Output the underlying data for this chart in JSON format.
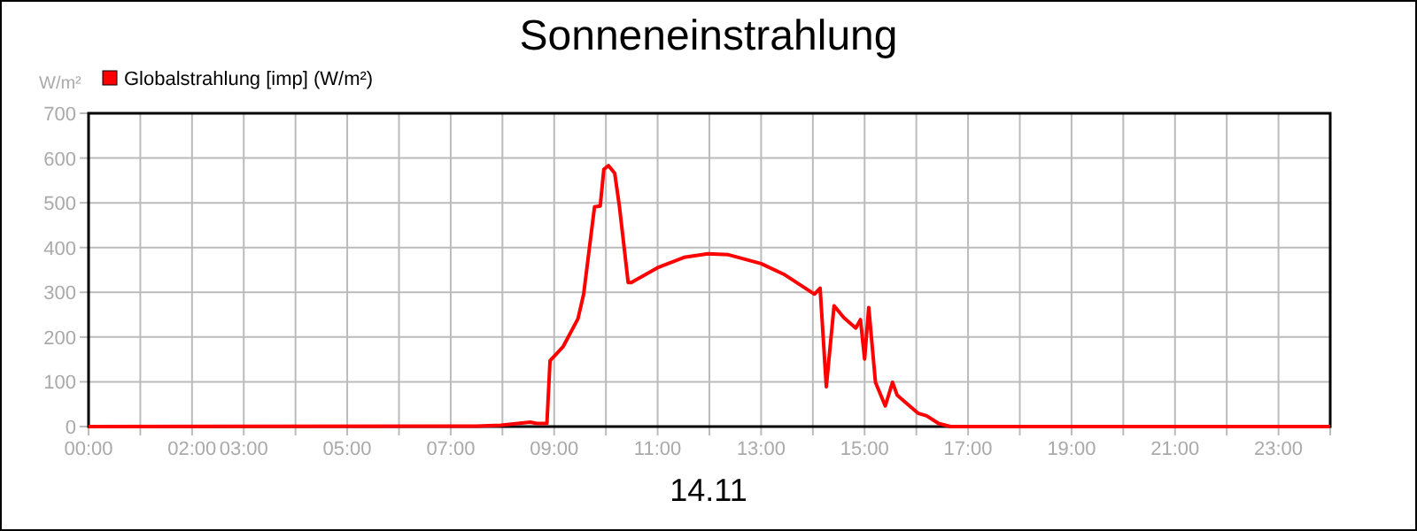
{
  "chart_data": {
    "type": "line",
    "title": "Sonneneinstrahlung",
    "xlabel": "14.11",
    "ylabel": "W/m²",
    "series": [
      {
        "name": "Globalstrahlung [imp] (W/m²)",
        "color": "#ff0000",
        "x": [
          0,
          7.5,
          7.97,
          8.54,
          8.66,
          8.86,
          8.92,
          9.17,
          9.46,
          9.57,
          9.78,
          9.89,
          9.96,
          10.05,
          10.17,
          10.26,
          10.43,
          10.49,
          11.0,
          11.51,
          11.97,
          12.37,
          13.0,
          13.46,
          14.03,
          14.14,
          14.26,
          14.41,
          14.6,
          14.83,
          14.92,
          15.0,
          15.08,
          15.21,
          15.4,
          15.54,
          15.63,
          16.03,
          16.2,
          16.43,
          16.66,
          24
        ],
        "values": [
          0,
          1,
          3,
          10,
          7,
          7,
          147,
          178,
          241,
          296,
          491,
          493,
          575,
          583,
          566,
          493,
          322,
          322,
          355,
          378,
          386,
          384,
          364,
          339,
          296,
          309,
          89,
          270,
          243,
          220,
          239,
          151,
          266,
          99,
          46,
          99,
          70,
          30,
          24,
          7,
          0,
          0
        ]
      }
    ],
    "xlim": [
      0,
      24
    ],
    "xticks": [
      {
        "value": 0,
        "label": "00:00"
      },
      {
        "value": 1,
        "label": null
      },
      {
        "value": 2,
        "label": "02:00"
      },
      {
        "value": 3,
        "label": "03:00"
      },
      {
        "value": 4,
        "label": null
      },
      {
        "value": 5,
        "label": "05:00"
      },
      {
        "value": 6,
        "label": null
      },
      {
        "value": 7,
        "label": "07:00"
      },
      {
        "value": 8,
        "label": null
      },
      {
        "value": 9,
        "label": "09:00"
      },
      {
        "value": 10,
        "label": null
      },
      {
        "value": 11,
        "label": "11:00"
      },
      {
        "value": 12,
        "label": null
      },
      {
        "value": 13,
        "label": "13:00"
      },
      {
        "value": 14,
        "label": null
      },
      {
        "value": 15,
        "label": "15:00"
      },
      {
        "value": 16,
        "label": null
      },
      {
        "value": 17,
        "label": "17:00"
      },
      {
        "value": 18,
        "label": null
      },
      {
        "value": 19,
        "label": "19:00"
      },
      {
        "value": 20,
        "label": null
      },
      {
        "value": 21,
        "label": "21:00"
      },
      {
        "value": 22,
        "label": null
      },
      {
        "value": 23,
        "label": "23:00"
      },
      {
        "value": 24,
        "label": null
      }
    ],
    "ylim": [
      0,
      700
    ],
    "yticks": [
      0,
      100,
      200,
      300,
      400,
      500,
      600,
      700
    ],
    "grid": true,
    "legend": "top left",
    "marker": "none",
    "line_style": "solid"
  }
}
